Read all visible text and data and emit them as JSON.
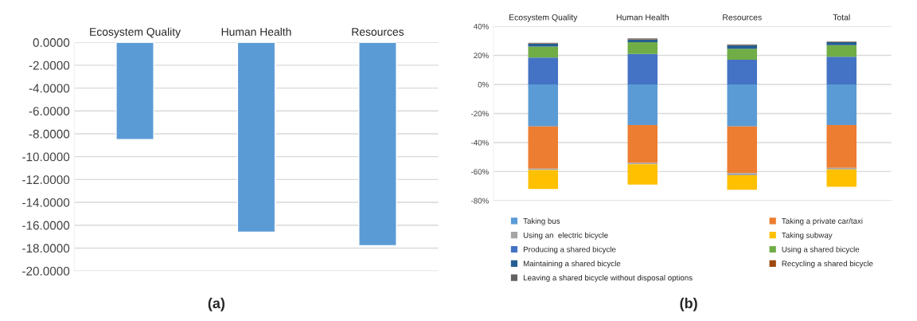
{
  "chart_data": [
    {
      "type": "bar",
      "categories": [
        "Ecosystem Quality",
        "Human Health",
        "Resources"
      ],
      "values": [
        -8.5,
        -16.6,
        -17.8
      ],
      "color": "#5b9bd5",
      "ylim": [
        -20,
        0
      ],
      "yticks": [
        {
          "value": 0,
          "label": "0.0000"
        },
        {
          "value": -2,
          "label": "-2.0000"
        },
        {
          "value": -4,
          "label": "-4.0000"
        },
        {
          "value": -6,
          "label": "-6.0000"
        },
        {
          "value": -8,
          "label": "-8.0000"
        },
        {
          "value": -10,
          "label": "-10.0000"
        },
        {
          "value": -12,
          "label": "-12.0000"
        },
        {
          "value": -14,
          "label": "-14.0000"
        },
        {
          "value": -16,
          "label": "-16.0000"
        },
        {
          "value": -18,
          "label": "-18.0000"
        },
        {
          "value": -20,
          "label": "-20.0000"
        }
      ],
      "grid": "y",
      "legend": false,
      "annotations": [
        "(a)"
      ]
    },
    {
      "type": "bar",
      "stacked": true,
      "categories": [
        "Ecosystem Quality",
        "Human Health",
        "Resources",
        "Total"
      ],
      "series": [
        {
          "name": "Taking bus",
          "color": "#5b9bd5",
          "values": [
            -29,
            -28,
            -29,
            -28
          ]
        },
        {
          "name": "Taking a private car/taxi",
          "color": "#ed7d31",
          "values": [
            -29,
            -26,
            -32,
            -29.5
          ]
        },
        {
          "name": "Using an  electric bicycle",
          "color": "#a5a5a5",
          "values": [
            -1,
            -1,
            -1.5,
            -1
          ]
        },
        {
          "name": "Taking subway",
          "color": "#ffc000",
          "values": [
            -13,
            -14,
            -10,
            -12
          ]
        },
        {
          "name": "Producing a shared bicycle",
          "color": "#4472c4",
          "values": [
            18.5,
            21,
            17,
            19
          ]
        },
        {
          "name": "Using a shared bicycle",
          "color": "#70ad47",
          "values": [
            7.5,
            8,
            7.5,
            8
          ]
        },
        {
          "name": "Maintaining a shared bicycle",
          "color": "#255e91",
          "values": [
            2,
            2,
            2.5,
            2
          ]
        },
        {
          "name": "Recycling a shared bicycle",
          "color": "#9e480e",
          "values": [
            0.3,
            0.3,
            0.3,
            0.3
          ]
        },
        {
          "name": "Leaving a shared bicycle without disposal options",
          "color": "#636363",
          "values": [
            0.3,
            0.3,
            0.3,
            0.3
          ]
        }
      ],
      "ylim": [
        -80,
        40
      ],
      "yticks": [
        {
          "value": 40,
          "label": "40%"
        },
        {
          "value": 20,
          "label": "20%"
        },
        {
          "value": 0,
          "label": "0%"
        },
        {
          "value": -20,
          "label": "-20%"
        },
        {
          "value": -40,
          "label": "-40%"
        },
        {
          "value": -60,
          "label": "-60%"
        },
        {
          "value": -80,
          "label": "-80%"
        }
      ],
      "grid": "y",
      "legend": "bottom",
      "annotations": [
        "(b)"
      ]
    }
  ]
}
